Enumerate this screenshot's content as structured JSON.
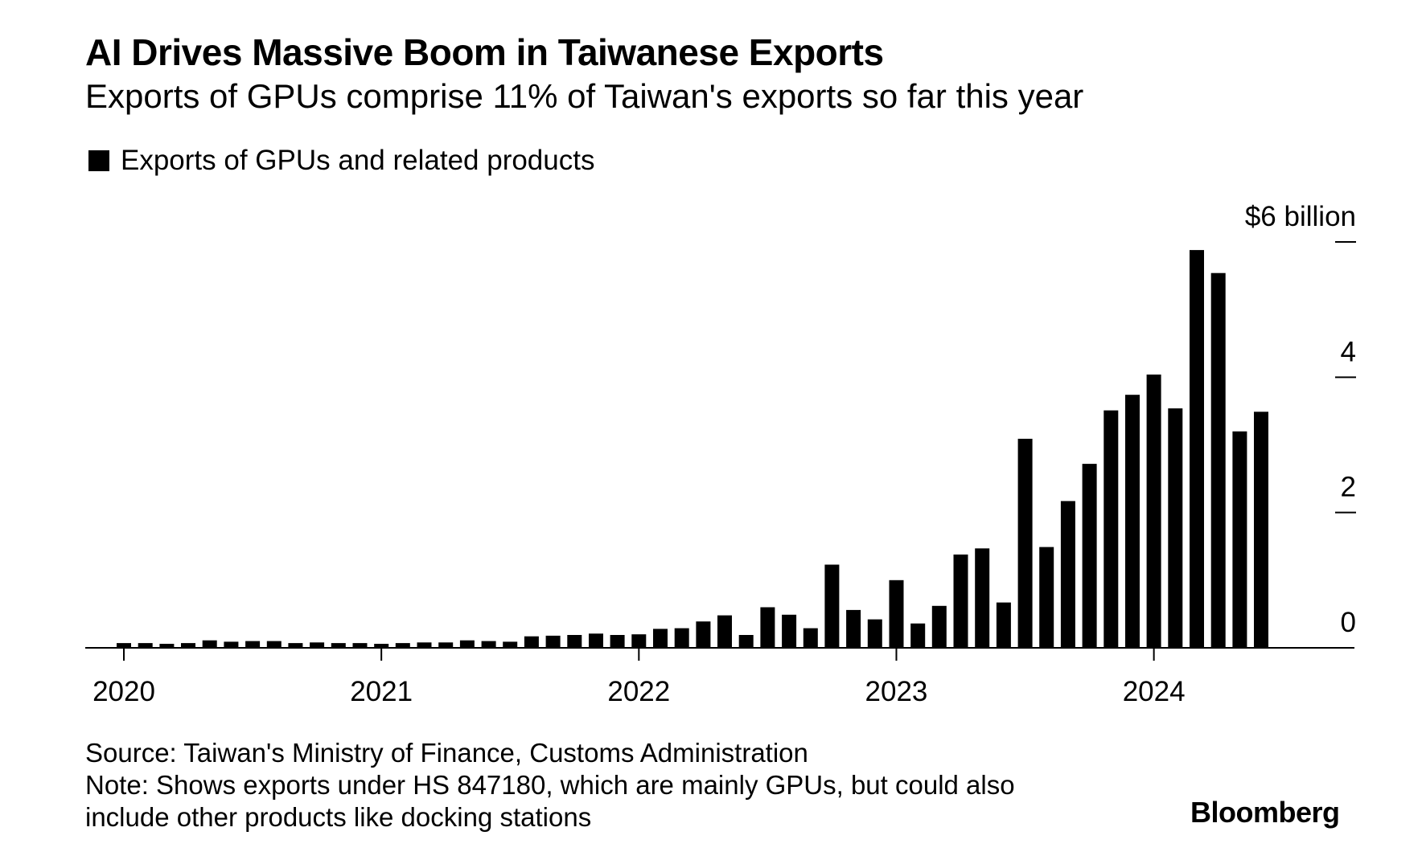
{
  "chart_data": {
    "type": "bar",
    "title": "AI Drives Massive Boom in Taiwanese Exports",
    "subtitle": "Exports of GPUs comprise 11% of Taiwan's exports so far this year",
    "legend": [
      "Exports of GPUs and related products"
    ],
    "legend_position": "top-left",
    "y_unit_label": "$6 billion",
    "ylim": [
      0,
      6
    ],
    "yticks": [
      0,
      2,
      4,
      6
    ],
    "ytick_labels": [
      "0",
      "2",
      "4",
      "$6 billion"
    ],
    "xtick_labels": [
      "2020",
      "2021",
      "2022",
      "2023",
      "2024"
    ],
    "grid": false,
    "color": "#000000",
    "series": [
      {
        "name": "Exports of GPUs and related products",
        "x": [
          "2020-01",
          "2020-02",
          "2020-03",
          "2020-04",
          "2020-05",
          "2020-06",
          "2020-07",
          "2020-08",
          "2020-09",
          "2020-10",
          "2020-11",
          "2020-12",
          "2021-01",
          "2021-02",
          "2021-03",
          "2021-04",
          "2021-05",
          "2021-06",
          "2021-07",
          "2021-08",
          "2021-09",
          "2021-10",
          "2021-11",
          "2021-12",
          "2022-01",
          "2022-02",
          "2022-03",
          "2022-04",
          "2022-05",
          "2022-06",
          "2022-07",
          "2022-08",
          "2022-09",
          "2022-10",
          "2022-11",
          "2022-12",
          "2023-01",
          "2023-02",
          "2023-03",
          "2023-04",
          "2023-05",
          "2023-06",
          "2023-07",
          "2023-08",
          "2023-09",
          "2023-10",
          "2023-11",
          "2023-12",
          "2024-01",
          "2024-02",
          "2024-03",
          "2024-04",
          "2024-05",
          "2024-06"
        ],
        "values": [
          0.07,
          0.07,
          0.06,
          0.07,
          0.11,
          0.09,
          0.1,
          0.1,
          0.07,
          0.08,
          0.07,
          0.07,
          0.06,
          0.07,
          0.08,
          0.08,
          0.11,
          0.1,
          0.09,
          0.17,
          0.18,
          0.19,
          0.21,
          0.19,
          0.2,
          0.28,
          0.29,
          0.39,
          0.48,
          0.19,
          0.6,
          0.49,
          0.29,
          1.23,
          0.56,
          0.42,
          1.0,
          0.36,
          0.62,
          1.38,
          1.47,
          0.67,
          3.09,
          1.49,
          2.17,
          2.72,
          3.51,
          3.74,
          4.04,
          3.54,
          5.88,
          5.54,
          3.2,
          3.49
        ]
      }
    ]
  },
  "footer": {
    "source": "Source: Taiwan's Ministry of Finance, Customs Administration",
    "note_line1": "Note: Shows exports under HS 847180, which are mainly GPUs, but could also",
    "note_line2": "include other products like docking stations",
    "brand": "Bloomberg"
  }
}
